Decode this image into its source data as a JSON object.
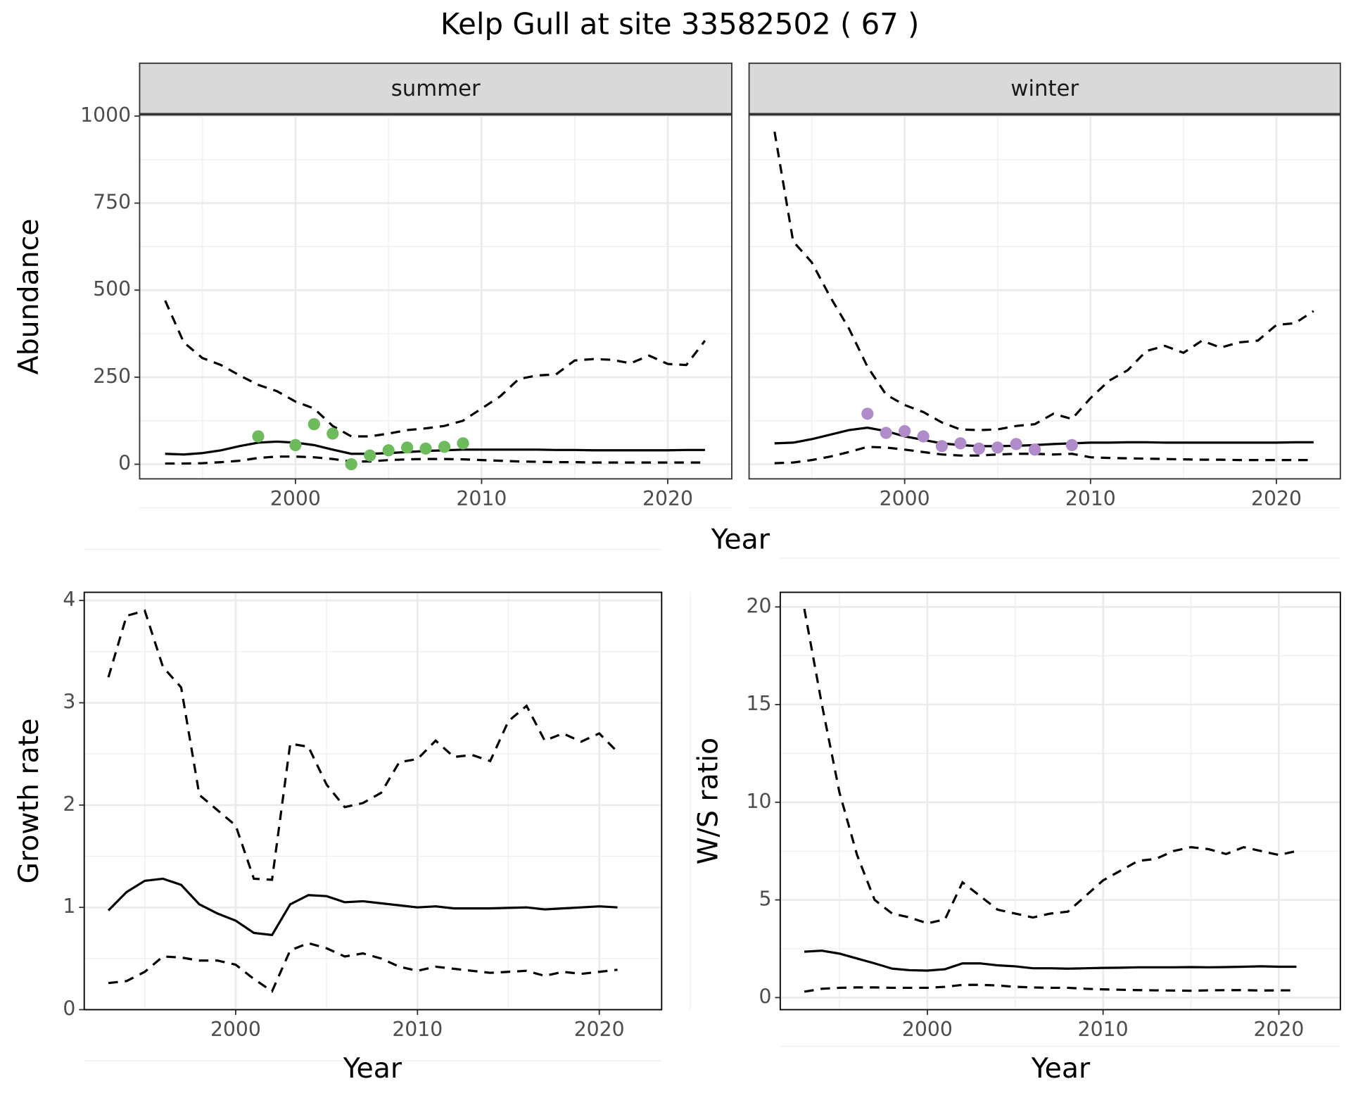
{
  "title": "Kelp Gull at site 33582502 ( 67 )",
  "chart_data": [
    {
      "type": "line",
      "facet": "summer",
      "ylabel": "Abundance",
      "xlabel": "Year",
      "x": [
        1993,
        1994,
        1995,
        1996,
        1997,
        1998,
        1999,
        2000,
        2001,
        2002,
        2003,
        2004,
        2005,
        2006,
        2007,
        2008,
        2009,
        2010,
        2011,
        2012,
        2013,
        2014,
        2015,
        2016,
        2017,
        2018,
        2019,
        2020,
        2021,
        2022
      ],
      "series": [
        {
          "linestyle": "dashed",
          "color": "#000000",
          "values": [
            470,
            350,
            305,
            285,
            255,
            228,
            210,
            180,
            160,
            110,
            80,
            80,
            88,
            98,
            103,
            110,
            125,
            160,
            195,
            245,
            255,
            258,
            298,
            302,
            300,
            290,
            312,
            288,
            285,
            355
          ]
        },
        {
          "linestyle": "solid",
          "color": "#000000",
          "values": [
            30,
            28,
            32,
            40,
            52,
            62,
            65,
            62,
            55,
            42,
            30,
            30,
            32,
            35,
            38,
            40,
            42,
            42,
            42,
            42,
            42,
            41,
            41,
            40,
            40,
            40,
            40,
            40,
            41,
            41
          ]
        },
        {
          "linestyle": "dashed",
          "color": "#000000",
          "values": [
            2,
            2,
            3,
            6,
            10,
            18,
            22,
            22,
            20,
            15,
            8,
            8,
            12,
            14,
            15,
            15,
            14,
            12,
            10,
            8,
            7,
            6,
            6,
            5,
            5,
            5,
            5,
            5,
            5,
            5
          ]
        }
      ],
      "points": {
        "color": "#6dbb5c",
        "x": [
          1998,
          2000,
          2001,
          2002,
          2003,
          2004,
          2005,
          2006,
          2007,
          2008,
          2009
        ],
        "values": [
          80,
          55,
          115,
          88,
          0,
          25,
          40,
          48,
          45,
          50,
          60
        ]
      },
      "xlim": [
        1991.63,
        2023.44
      ],
      "xticks": [
        2000,
        2010,
        2020
      ],
      "ylim": [
        -42,
        1005
      ],
      "yticks": [
        0,
        250,
        500,
        750,
        1000
      ],
      "grid": true
    },
    {
      "type": "line",
      "facet": "winter",
      "x": [
        1993,
        1994,
        1995,
        1996,
        1997,
        1998,
        1999,
        2000,
        2001,
        2002,
        2003,
        2004,
        2005,
        2006,
        2007,
        2008,
        2009,
        2010,
        2011,
        2012,
        2013,
        2014,
        2015,
        2016,
        2017,
        2018,
        2019,
        2020,
        2021,
        2022
      ],
      "series": [
        {
          "linestyle": "dashed",
          "color": "#000000",
          "values": [
            955,
            640,
            580,
            480,
            390,
            280,
            200,
            170,
            150,
            120,
            100,
            98,
            100,
            110,
            115,
            145,
            130,
            190,
            240,
            270,
            325,
            340,
            320,
            355,
            335,
            350,
            355,
            400,
            405,
            440
          ]
        },
        {
          "linestyle": "solid",
          "color": "#000000",
          "values": [
            60,
            62,
            72,
            85,
            98,
            105,
            95,
            80,
            70,
            60,
            55,
            52,
            52,
            53,
            55,
            58,
            60,
            62,
            62,
            63,
            63,
            62,
            62,
            62,
            62,
            62,
            62,
            62,
            63,
            63
          ]
        },
        {
          "linestyle": "dashed",
          "color": "#000000",
          "values": [
            3,
            5,
            12,
            22,
            35,
            50,
            48,
            42,
            35,
            28,
            25,
            25,
            28,
            30,
            30,
            28,
            30,
            20,
            18,
            17,
            16,
            15,
            14,
            13,
            13,
            12,
            12,
            12,
            12,
            12
          ]
        }
      ],
      "points": {
        "color": "#b18ccb",
        "x": [
          1998,
          1999,
          2000,
          2001,
          2002,
          2003,
          2004,
          2005,
          2006,
          2007,
          2009
        ],
        "values": [
          145,
          90,
          95,
          80,
          52,
          60,
          45,
          48,
          58,
          42,
          55
        ]
      },
      "xlim": [
        1991.63,
        2023.44
      ],
      "xticks": [
        2000,
        2010,
        2020
      ],
      "ylim": [
        -42,
        1005
      ],
      "yticks": [
        0,
        250,
        500,
        750,
        1000
      ],
      "grid": true
    },
    {
      "type": "line",
      "ylabel": "Growth rate",
      "xlabel": "Year",
      "x": [
        1993,
        1994,
        1995,
        1996,
        1997,
        1998,
        1999,
        2000,
        2001,
        2002,
        2003,
        2004,
        2005,
        2006,
        2007,
        2008,
        2009,
        2010,
        2011,
        2012,
        2013,
        2014,
        2015,
        2016,
        2017,
        2018,
        2019,
        2020,
        2021
      ],
      "series": [
        {
          "linestyle": "dashed",
          "color": "#000000",
          "values": [
            3.25,
            3.85,
            3.9,
            3.35,
            3.15,
            2.1,
            1.95,
            1.8,
            1.28,
            1.27,
            2.6,
            2.57,
            2.2,
            1.98,
            2.02,
            2.12,
            2.42,
            2.45,
            2.63,
            2.47,
            2.49,
            2.43,
            2.82,
            2.97,
            2.63,
            2.7,
            2.62,
            2.7,
            2.52
          ]
        },
        {
          "linestyle": "solid",
          "color": "#000000",
          "values": [
            0.97,
            1.15,
            1.26,
            1.28,
            1.22,
            1.03,
            0.94,
            0.87,
            0.75,
            0.73,
            1.03,
            1.12,
            1.11,
            1.05,
            1.06,
            1.04,
            1.02,
            1.0,
            1.01,
            0.99,
            0.99,
            0.99,
            0.995,
            1.0,
            0.98,
            0.99,
            1.0,
            1.01,
            1.0
          ]
        },
        {
          "linestyle": "dashed",
          "color": "#000000",
          "values": [
            0.26,
            0.28,
            0.37,
            0.52,
            0.51,
            0.48,
            0.48,
            0.44,
            0.3,
            0.18,
            0.58,
            0.65,
            0.6,
            0.52,
            0.55,
            0.5,
            0.42,
            0.38,
            0.42,
            0.4,
            0.38,
            0.36,
            0.37,
            0.38,
            0.33,
            0.37,
            0.35,
            0.37,
            0.39
          ]
        }
      ],
      "xlim": [
        1991.67,
        2023.43
      ],
      "xticks": [
        2000,
        2010,
        2020
      ],
      "ylim": [
        0,
        4.08
      ],
      "yticks": [
        0,
        1,
        2,
        3,
        4
      ],
      "grid": true
    },
    {
      "type": "line",
      "ylabel": "W/S ratio",
      "xlabel": "Year",
      "x": [
        1993,
        1994,
        1995,
        1996,
        1997,
        1998,
        1999,
        2000,
        2001,
        2002,
        2003,
        2004,
        2005,
        2006,
        2007,
        2008,
        2009,
        2010,
        2011,
        2012,
        2013,
        2014,
        2015,
        2016,
        2017,
        2018,
        2019,
        2020,
        2021
      ],
      "series": [
        {
          "linestyle": "dashed",
          "color": "#000000",
          "values": [
            19.9,
            15,
            10.5,
            7.3,
            5,
            4.3,
            4.1,
            3.8,
            4,
            5.9,
            5.2,
            4.5,
            4.3,
            4.1,
            4.3,
            4.4,
            5.2,
            6.0,
            6.5,
            7.0,
            7.1,
            7.5,
            7.7,
            7.6,
            7.35,
            7.7,
            7.5,
            7.3,
            7.5
          ]
        },
        {
          "linestyle": "solid",
          "color": "#000000",
          "values": [
            2.35,
            2.4,
            2.25,
            2.0,
            1.75,
            1.48,
            1.4,
            1.38,
            1.45,
            1.75,
            1.75,
            1.65,
            1.6,
            1.5,
            1.5,
            1.48,
            1.5,
            1.52,
            1.53,
            1.55,
            1.55,
            1.55,
            1.56,
            1.55,
            1.56,
            1.58,
            1.6,
            1.58,
            1.58
          ]
        },
        {
          "linestyle": "dashed",
          "color": "#000000",
          "values": [
            0.3,
            0.45,
            0.5,
            0.52,
            0.52,
            0.5,
            0.5,
            0.5,
            0.55,
            0.65,
            0.65,
            0.62,
            0.55,
            0.52,
            0.5,
            0.5,
            0.45,
            0.42,
            0.4,
            0.38,
            0.37,
            0.36,
            0.35,
            0.37,
            0.38,
            0.38,
            0.36,
            0.37,
            0.37
          ]
        }
      ],
      "xlim": [
        1991.63,
        2023.5
      ],
      "xticks": [
        2000,
        2010,
        2020
      ],
      "ylim": [
        -0.62,
        20.75
      ],
      "yticks": [
        0,
        5,
        10,
        15,
        20
      ],
      "grid": true
    }
  ]
}
